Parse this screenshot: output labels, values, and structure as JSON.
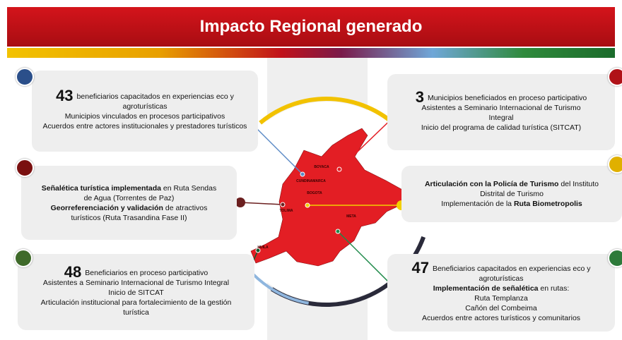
{
  "header": {
    "title": "Impacto Regional generado"
  },
  "map_labels": [
    "CUNDINAMARCA",
    "BOYACA",
    "BOGOTA",
    "META",
    "TOLIMA",
    "HUILA"
  ],
  "cards": [
    {
      "number": "43",
      "lines": [
        [
          {
            "text": "beneficiarios capacitados en experiencias eco y"
          }
        ],
        [
          {
            "text": "agroturísticas"
          }
        ],
        [
          {
            "text": "Municipios vinculados en procesos participativos"
          }
        ],
        [
          {
            "text": "Acuerdos entre actores institucionales y prestadores turísticos"
          }
        ]
      ]
    },
    {
      "number": "3",
      "lines": [
        [
          {
            "text": "Municipios beneficiados en proceso participativo"
          }
        ],
        [
          {
            "text": "Asistentes a Seminario Internacional de Turismo"
          }
        ],
        [
          {
            "text": "Integral"
          }
        ],
        [
          {
            "text": "Inicio del programa de calidad turística (SITCAT)"
          }
        ]
      ]
    },
    {
      "lines": [
        [
          {
            "text": "Señalética turística implementada",
            "bold": true
          },
          {
            "text": " en Ruta Sendas"
          }
        ],
        [
          {
            "text": "de Agua (Torrentes de Paz)"
          }
        ],
        [
          {
            "text": "Georreferenciación y validación",
            "bold": true
          },
          {
            "text": " de atractivos"
          }
        ],
        [
          {
            "text": "turísticos (Ruta Trasandina Fase II)"
          }
        ]
      ]
    },
    {
      "lines": [
        [
          {
            "text": "Articulación con la Policía de Turismo",
            "bold": true
          },
          {
            "text": " del Instituto"
          }
        ],
        [
          {
            "text": "Distrital de Turismo"
          }
        ],
        [
          {
            "text": "Implementación de la "
          },
          {
            "text": "Ruta Biometropolis",
            "bold": true
          }
        ]
      ]
    },
    {
      "number": "48",
      "lines": [
        [
          {
            "text": "Beneficiarios en proceso participativo"
          }
        ],
        [
          {
            "text": "Asistentes a Seminario Internacional de Turismo Integral"
          }
        ],
        [
          {
            "text": "Inicio de SITCAT"
          }
        ],
        [
          {
            "text": "Articulación institucional para fortalecimiento de la gestión"
          }
        ],
        [
          {
            "text": "turística"
          }
        ]
      ]
    },
    {
      "number": "47",
      "lines": [
        [
          {
            "text": "Beneficiarios capacitados en experiencias eco y"
          }
        ],
        [
          {
            "text": "agroturísticas"
          }
        ],
        [
          {
            "text": "Implementación de señalética",
            "bold": true
          },
          {
            "text": " en rutas:"
          }
        ],
        [
          {
            "text": "Ruta Templanza"
          }
        ],
        [
          {
            "text": "Cañón del Combeima"
          }
        ],
        [
          {
            "text": "Acuerdos entre actores turísticos y comunitarios"
          }
        ]
      ]
    }
  ]
}
